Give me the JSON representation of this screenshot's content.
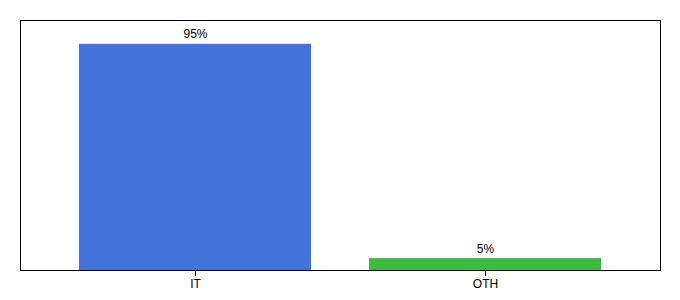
{
  "chart_data": {
    "type": "bar",
    "categories": [
      "IT",
      "OTH"
    ],
    "values": [
      95,
      5
    ],
    "value_labels": [
      "95%",
      "5%"
    ],
    "colors": [
      "#4472db",
      "#3dbb3d"
    ],
    "ylim": [
      0,
      105
    ],
    "data_labels": true,
    "tick_labels": "x"
  }
}
